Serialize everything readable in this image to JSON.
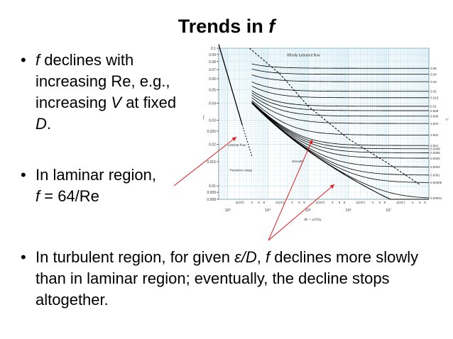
{
  "slide": {
    "title": "Trends in ",
    "title_var": "f",
    "bullets": [
      {
        "v1": "f",
        "t1": " declines with increasing Re, e.g., increasing ",
        "v2": "V",
        "t2": " at fixed ",
        "v3": "D",
        "t3": "."
      },
      {
        "t1": "In laminar region,",
        "v1": "f",
        "t2": " = 64/Re"
      },
      {
        "t1": "In turbulent region, for given ",
        "v1": "ε/D",
        "t2": ", ",
        "v2": "f",
        "t3": " declines more slowly than in laminar region; eventually, the decline stops altogether."
      }
    ],
    "colors": {
      "annotation_arrow": "#e02020",
      "grid": "#b8dceb",
      "curve": "#000000"
    }
  },
  "chart_data": {
    "type": "line",
    "title": "",
    "xlabel": "Re = ρVD/μ",
    "ylabel": "f",
    "y2label": "ε/D",
    "xscale": "log",
    "yscale": "log",
    "xlim": [
      600,
      100000000
    ],
    "ylim": [
      0.008,
      0.1
    ],
    "grid": true,
    "y_ticks": [
      "0.1",
      "0.09",
      "0.08",
      "0.07",
      "0.06",
      "0.05",
      "0.04",
      "0.03",
      "0.025",
      "0.02",
      "0.015",
      "0.01",
      "0.009",
      "0.008"
    ],
    "x_ticks": [
      "10³",
      "10⁴",
      "10⁵",
      "10⁶",
      "10⁷"
    ],
    "x_minor_ticks": [
      "2(10³)",
      "4",
      "6",
      "8",
      "2(10⁴)",
      "4",
      "6",
      "8",
      "2(10⁵)",
      "4",
      "6",
      "8",
      "2(10⁶)",
      "4",
      "6",
      "8",
      "2(10⁷)",
      "4",
      "6",
      "8"
    ],
    "annotations": {
      "wholly_turbulent": "Wholly turbulent flow",
      "laminar": "Laminar flow",
      "transition": "Transition range",
      "smooth": "Smooth"
    },
    "laminar_line": {
      "equation": "f = 64/Re",
      "re_range": [
        600,
        2300
      ]
    },
    "series": [
      {
        "name": "0.05",
        "f_asymptote": 0.072
      },
      {
        "name": "0.04",
        "f_asymptote": 0.065
      },
      {
        "name": "0.03",
        "f_asymptote": 0.057
      },
      {
        "name": "0.02",
        "f_asymptote": 0.049
      },
      {
        "name": "0.015",
        "f_asymptote": 0.044
      },
      {
        "name": "0.01",
        "f_asymptote": 0.038
      },
      {
        "name": "0.008",
        "f_asymptote": 0.036
      },
      {
        "name": "0.006",
        "f_asymptote": 0.032
      },
      {
        "name": "0.004",
        "f_asymptote": 0.028
      },
      {
        "name": "0.002",
        "f_asymptote": 0.0235
      },
      {
        "name": "0.001",
        "f_asymptote": 0.0196
      },
      {
        "name": "0.0008",
        "f_asymptote": 0.0187
      },
      {
        "name": "0.0006",
        "f_asymptote": 0.0177
      },
      {
        "name": "0.0004",
        "f_asymptote": 0.0163
      },
      {
        "name": "0.0002",
        "f_asymptote": 0.0138
      },
      {
        "name": "0.0001",
        "f_asymptote": 0.012
      },
      {
        "name": "0.00005",
        "f_asymptote": 0.0106
      },
      {
        "name": "0.00001",
        "f_asymptote": 0.0085
      }
    ]
  }
}
